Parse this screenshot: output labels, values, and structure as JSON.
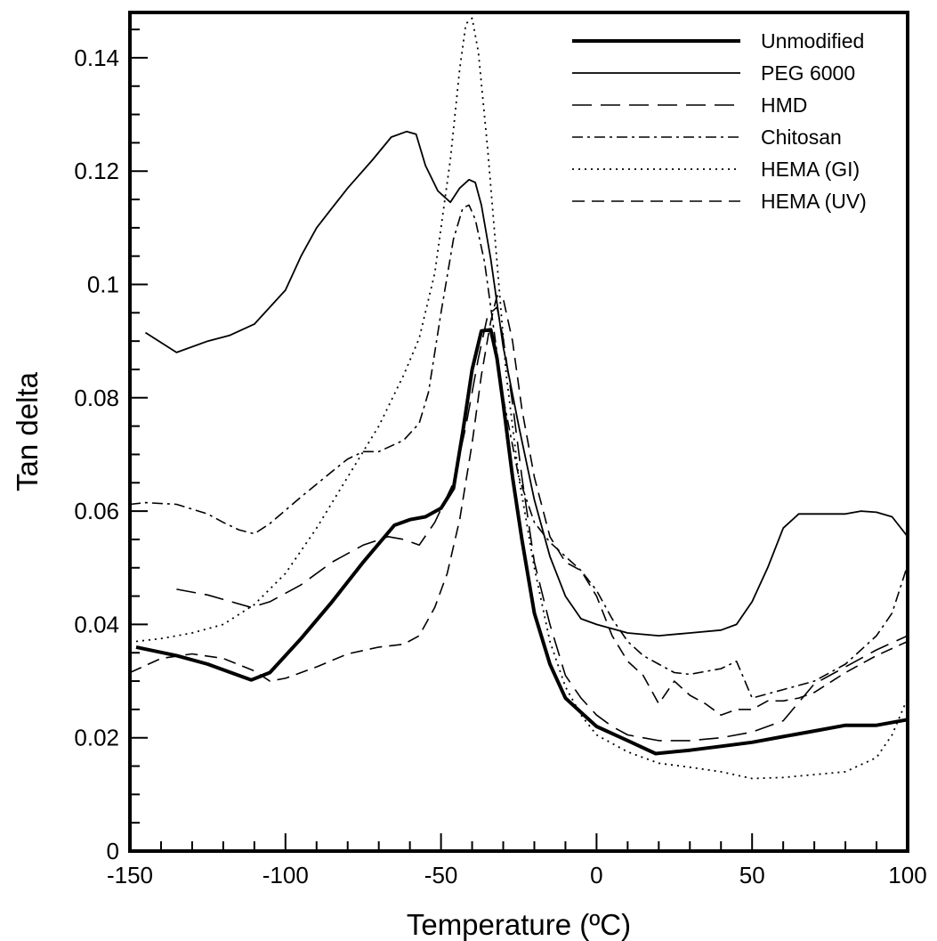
{
  "chart_data": {
    "type": "line",
    "title": "",
    "xlabel": "Temperature (ºC)",
    "ylabel": "Tan delta",
    "xlim": [
      -150,
      100
    ],
    "ylim": [
      0,
      0.148
    ],
    "xticks": [
      -150,
      -100,
      -50,
      0,
      50,
      100
    ],
    "xtick_labels": [
      "-150",
      "-100",
      "-50",
      "0",
      "50",
      "100"
    ],
    "yticks": [
      0,
      0.02,
      0.04,
      0.06,
      0.08,
      0.1,
      0.12,
      0.14
    ],
    "ytick_labels": [
      "0",
      "0.02",
      "0.04",
      "0.06",
      "0.08",
      "0.1",
      "0.12",
      "0.14"
    ],
    "grid": false,
    "legend_position": "top-right",
    "series": [
      {
        "name": "Unmodified",
        "style": "thick-solid",
        "x": [
          -148,
          -135,
          -125,
          -111,
          -105,
          -95,
          -85,
          -75,
          -65,
          -60,
          -55,
          -50,
          -46,
          -43,
          -40,
          -37,
          -34,
          -32,
          -30,
          -27,
          -24,
          -20,
          -15,
          -10,
          -5,
          0,
          10,
          19,
          30,
          40,
          50,
          60,
          70,
          80,
          90,
          100
        ],
        "y": [
          0.036,
          0.0345,
          0.033,
          0.0302,
          0.0315,
          0.0375,
          0.044,
          0.051,
          0.0575,
          0.0585,
          0.059,
          0.0605,
          0.064,
          0.074,
          0.085,
          0.0918,
          0.092,
          0.087,
          0.079,
          0.066,
          0.055,
          0.042,
          0.033,
          0.027,
          0.0245,
          0.022,
          0.0195,
          0.0172,
          0.0178,
          0.0185,
          0.0192,
          0.0202,
          0.0212,
          0.0222,
          0.0222,
          0.0232
        ]
      },
      {
        "name": "PEG 6000",
        "style": "solid",
        "x": [
          -145,
          -135,
          -125,
          -118,
          -110,
          -100,
          -95,
          -90,
          -85,
          -80,
          -72,
          -66,
          -61,
          -58,
          -55,
          -51,
          -47,
          -44,
          -41,
          -39,
          -37,
          -34,
          -30,
          -25,
          -20,
          -15,
          -10,
          -5,
          0,
          10,
          20,
          30,
          40,
          45,
          50,
          55,
          60,
          65,
          70,
          80,
          85,
          90,
          95,
          100
        ],
        "y": [
          0.0915,
          0.088,
          0.09,
          0.091,
          0.093,
          0.099,
          0.105,
          0.11,
          0.1135,
          0.117,
          0.122,
          0.126,
          0.127,
          0.1265,
          0.121,
          0.1165,
          0.1145,
          0.117,
          0.1185,
          0.118,
          0.114,
          0.1045,
          0.089,
          0.075,
          0.062,
          0.052,
          0.045,
          0.041,
          0.04,
          0.0385,
          0.038,
          0.0385,
          0.039,
          0.04,
          0.044,
          0.05,
          0.057,
          0.0595,
          0.0595,
          0.0595,
          0.06,
          0.0598,
          0.059,
          0.0555
        ]
      },
      {
        "name": "HMD",
        "style": "long-dash",
        "x": [
          -135,
          -125,
          -111,
          -105,
          -95,
          -85,
          -75,
          -67,
          -62,
          -57,
          -52,
          -46,
          -42,
          -38,
          -35,
          -32,
          -30,
          -27,
          -24,
          -20,
          -15,
          -10,
          -5,
          0,
          5,
          10,
          20,
          30,
          40,
          50,
          60,
          70,
          80,
          90,
          100
        ],
        "y": [
          0.0462,
          0.0452,
          0.043,
          0.044,
          0.047,
          0.051,
          0.054,
          0.0555,
          0.055,
          0.054,
          0.058,
          0.065,
          0.075,
          0.087,
          0.0945,
          0.096,
          0.0905,
          0.079,
          0.066,
          0.051,
          0.04,
          0.031,
          0.027,
          0.024,
          0.022,
          0.0205,
          0.0195,
          0.0195,
          0.02,
          0.021,
          0.023,
          0.0295,
          0.0325,
          0.0355,
          0.038
        ]
      },
      {
        "name": "Chitosan",
        "style": "dash-dot",
        "x": [
          -150,
          -145,
          -135,
          -125,
          -120,
          -115,
          -110,
          -105,
          -95,
          -85,
          -80,
          -75,
          -70,
          -62,
          -57,
          -54,
          -50,
          -46,
          -43,
          -41,
          -39,
          -36,
          -33,
          -30,
          -25,
          -20,
          -15,
          -10,
          -5,
          0,
          5,
          10,
          15,
          20,
          25,
          30,
          40,
          45,
          50,
          60,
          70,
          80,
          90,
          95,
          100
        ],
        "y": [
          0.0612,
          0.0615,
          0.0612,
          0.0595,
          0.058,
          0.0567,
          0.056,
          0.0578,
          0.0625,
          0.067,
          0.0692,
          0.0705,
          0.0705,
          0.0725,
          0.0755,
          0.081,
          0.095,
          0.108,
          0.1135,
          0.114,
          0.1115,
          0.104,
          0.092,
          0.08,
          0.066,
          0.058,
          0.0545,
          0.052,
          0.0495,
          0.046,
          0.041,
          0.037,
          0.0345,
          0.033,
          0.0315,
          0.0312,
          0.0322,
          0.0335,
          0.027,
          0.0285,
          0.03,
          0.033,
          0.038,
          0.042,
          0.0505
        ]
      },
      {
        "name": "HEMA (GI)",
        "style": "dotted",
        "x": [
          -148,
          -140,
          -130,
          -120,
          -110,
          -100,
          -90,
          -80,
          -70,
          -62,
          -57,
          -52,
          -47,
          -44,
          -42,
          -40,
          -38,
          -35,
          -32,
          -29,
          -25,
          -20,
          -15,
          -10,
          -5,
          0,
          10,
          20,
          30,
          40,
          50,
          60,
          70,
          80,
          90,
          95,
          100
        ],
        "y": [
          0.037,
          0.0375,
          0.0385,
          0.04,
          0.0435,
          0.049,
          0.057,
          0.066,
          0.075,
          0.084,
          0.0905,
          0.102,
          0.122,
          0.138,
          0.146,
          0.147,
          0.141,
          0.124,
          0.104,
          0.084,
          0.066,
          0.05,
          0.037,
          0.029,
          0.024,
          0.0205,
          0.0175,
          0.0155,
          0.0148,
          0.014,
          0.0128,
          0.013,
          0.0135,
          0.014,
          0.0165,
          0.0205,
          0.027
        ]
      },
      {
        "name": "HEMA (UV)",
        "style": "medium-dash",
        "x": [
          -150,
          -140,
          -130,
          -120,
          -110,
          -105,
          -100,
          -90,
          -80,
          -70,
          -62,
          -57,
          -52,
          -48,
          -44,
          -40,
          -37,
          -34,
          -32,
          -30,
          -27,
          -24,
          -20,
          -15,
          -10,
          -5,
          0,
          5,
          10,
          15,
          20,
          25,
          30,
          35,
          40,
          45,
          50,
          55,
          60,
          65,
          70,
          80,
          90,
          100
        ],
        "y": [
          0.0315,
          0.034,
          0.0348,
          0.034,
          0.0318,
          0.03,
          0.0305,
          0.0325,
          0.0348,
          0.036,
          0.0365,
          0.038,
          0.043,
          0.049,
          0.0585,
          0.072,
          0.084,
          0.0935,
          0.098,
          0.0975,
          0.09,
          0.078,
          0.066,
          0.0555,
          0.051,
          0.0495,
          0.045,
          0.038,
          0.0335,
          0.031,
          0.026,
          0.03,
          0.0275,
          0.026,
          0.024,
          0.025,
          0.025,
          0.0265,
          0.0265,
          0.027,
          0.028,
          0.0315,
          0.0345,
          0.037
        ]
      }
    ]
  }
}
